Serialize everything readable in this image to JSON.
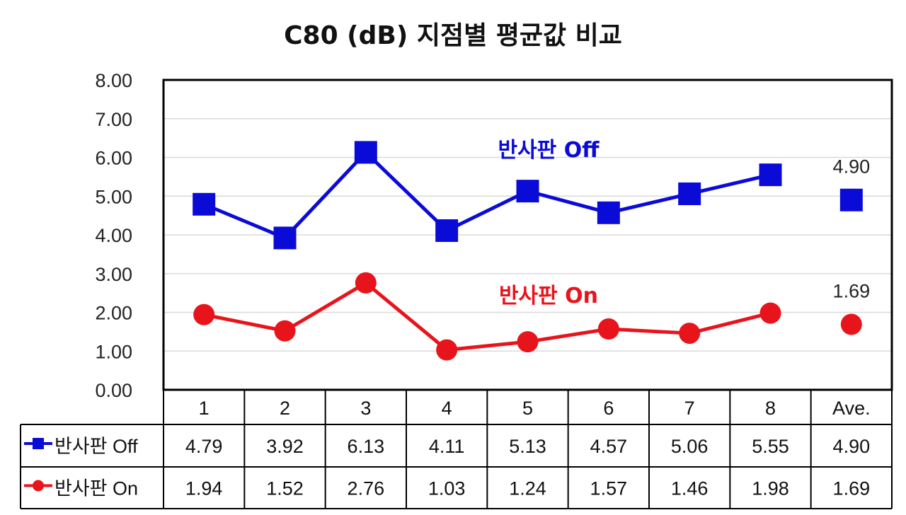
{
  "chart_data": {
    "type": "line",
    "title": "C80 (dB) 지점별 평균값 비교",
    "categories": [
      "1",
      "2",
      "3",
      "4",
      "5",
      "6",
      "7",
      "8",
      "Ave."
    ],
    "ylim": [
      0,
      8
    ],
    "yticks": [
      "0.00",
      "1.00",
      "2.00",
      "3.00",
      "4.00",
      "5.00",
      "6.00",
      "7.00",
      "8.00"
    ],
    "grid": true,
    "legend": "data-table",
    "series": [
      {
        "name": "반사판 Off",
        "color": "#0b0bd8",
        "marker": "square",
        "values": [
          4.79,
          3.92,
          6.13,
          4.11,
          5.13,
          4.57,
          5.06,
          5.55,
          4.9
        ],
        "labels": [
          "4.79",
          "3.92",
          "6.13",
          "4.11",
          "5.13",
          "4.57",
          "5.06",
          "5.55",
          "4.90"
        ],
        "annotation": "반사판 Off",
        "ave_label": "4.90"
      },
      {
        "name": "반사판 On",
        "color": "#e8141c",
        "marker": "circle",
        "values": [
          1.94,
          1.52,
          2.76,
          1.03,
          1.24,
          1.57,
          1.46,
          1.98,
          1.69
        ],
        "labels": [
          "1.94",
          "1.52",
          "2.76",
          "1.03",
          "1.24",
          "1.57",
          "1.46",
          "1.98",
          "1.69"
        ],
        "annotation": "반사판 On",
        "ave_label": "1.69"
      }
    ]
  }
}
